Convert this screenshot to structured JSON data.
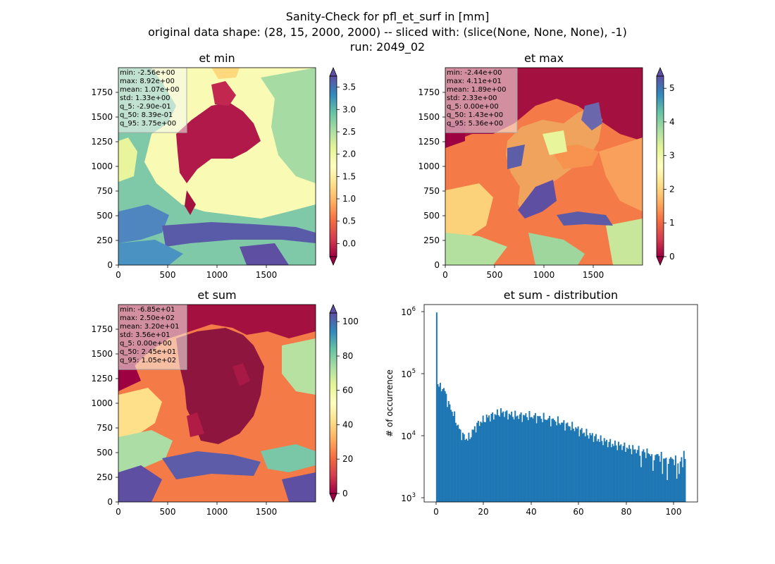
{
  "suptitle": {
    "line1": "Sanity-Check for pfl_et_surf in [mm]",
    "line2": "original data shape: (28, 15, 2000, 2000) -- sliced with: (slice(None, None, None), -1)",
    "line3": "run: 2049_02"
  },
  "colormap": "Spectral",
  "chart_data": [
    {
      "type": "heatmap",
      "title": "et min",
      "xlim": [
        0,
        2000
      ],
      "ylim": [
        0,
        2000
      ],
      "xticks": [
        "0",
        "500",
        "1000",
        "1500"
      ],
      "yticks": [
        "0",
        "250",
        "500",
        "750",
        "1000",
        "1250",
        "1500",
        "1750"
      ],
      "colorbar": {
        "min": -0.29,
        "max": 3.75,
        "extend": "both",
        "ticks": [
          "0.0",
          "0.5",
          "1.0",
          "1.5",
          "2.0",
          "2.5",
          "3.0",
          "3.5"
        ]
      },
      "stats": [
        "min: -2.56e+00",
        "max: 8.92e+00",
        "mean: 1.07e+00",
        "std: 1.33e+00",
        "q_5: -2.90e-01",
        "q_50: 8.39e-01",
        "q_95: 3.75e+00"
      ]
    },
    {
      "type": "heatmap",
      "title": "et max",
      "xlim": [
        0,
        2000
      ],
      "ylim": [
        0,
        2000
      ],
      "xticks": [
        "0",
        "500",
        "1000",
        "1500"
      ],
      "yticks": [
        "0",
        "250",
        "500",
        "750",
        "1000",
        "1250",
        "1500",
        "1750"
      ],
      "colorbar": {
        "min": 0.0,
        "max": 5.36,
        "extend": "both",
        "ticks": [
          "0",
          "1",
          "2",
          "3",
          "4",
          "5"
        ]
      },
      "stats": [
        "min: -2.44e+00",
        "max: 4.11e+01",
        "mean: 1.89e+00",
        "std: 2.33e+00",
        "q_5: 0.00e+00",
        "q_50: 1.43e+00",
        "q_95: 5.36e+00"
      ]
    },
    {
      "type": "heatmap",
      "title": "et sum",
      "xlim": [
        0,
        2000
      ],
      "ylim": [
        0,
        2000
      ],
      "xticks": [
        "0",
        "500",
        "1000",
        "1500"
      ],
      "yticks": [
        "0",
        "250",
        "500",
        "750",
        "1000",
        "1250",
        "1500",
        "1750"
      ],
      "colorbar": {
        "min": 0.0,
        "max": 105,
        "extend": "both",
        "ticks": [
          "0",
          "20",
          "40",
          "60",
          "80",
          "100"
        ]
      },
      "stats": [
        "min: -6.85e+01",
        "max: 2.50e+02",
        "mean: 3.20e+01",
        "std: 3.56e+01",
        "q_5: 0.00e+00",
        "q_50: 2.45e+01",
        "q_95: 1.05e+02"
      ]
    },
    {
      "type": "bar",
      "title": "et sum - distribution",
      "xlabel": "",
      "ylabel": "# of occurrence",
      "yscale": "log",
      "xlim": [
        -5,
        110
      ],
      "ylim": [
        900,
        1200000
      ],
      "xticks": [
        "0",
        "20",
        "40",
        "60",
        "80",
        "100"
      ],
      "yticks": [
        {
          "base": "10",
          "exp": "3"
        },
        {
          "base": "10",
          "exp": "4"
        },
        {
          "base": "10",
          "exp": "5"
        },
        {
          "base": "10",
          "exp": "6"
        }
      ],
      "color": "#1f77b4",
      "anchors": [
        [
          0,
          900000
        ],
        [
          0.5,
          70000
        ],
        [
          1,
          62000
        ],
        [
          2,
          55000
        ],
        [
          3,
          60000
        ],
        [
          4,
          46000
        ],
        [
          5,
          34000
        ],
        [
          6,
          28000
        ],
        [
          7,
          24000
        ],
        [
          8,
          19000
        ],
        [
          9,
          15000
        ],
        [
          10,
          12000
        ],
        [
          11,
          10500
        ],
        [
          12,
          9500
        ],
        [
          13,
          9000
        ],
        [
          14,
          9500
        ],
        [
          15,
          11000
        ],
        [
          16,
          13000
        ],
        [
          18,
          16000
        ],
        [
          20,
          18000
        ],
        [
          22,
          20000
        ],
        [
          24,
          21000
        ],
        [
          26,
          23000
        ],
        [
          28,
          24000
        ],
        [
          30,
          22000
        ],
        [
          32,
          21500
        ],
        [
          34,
          21000
        ],
        [
          36,
          20500
        ],
        [
          38,
          21000
        ],
        [
          40,
          20500
        ],
        [
          42,
          20000
        ],
        [
          44,
          19500
        ],
        [
          46,
          19000
        ],
        [
          48,
          18000
        ],
        [
          50,
          17500
        ],
        [
          52,
          16500
        ],
        [
          54,
          15500
        ],
        [
          56,
          14500
        ],
        [
          58,
          13500
        ],
        [
          60,
          12500
        ],
        [
          62,
          11500
        ],
        [
          64,
          10500
        ],
        [
          66,
          10000
        ],
        [
          68,
          9000
        ],
        [
          70,
          8500
        ],
        [
          72,
          8000
        ],
        [
          74,
          7500
        ],
        [
          76,
          7200
        ],
        [
          78,
          7000
        ],
        [
          80,
          6500
        ],
        [
          82,
          6300
        ],
        [
          84,
          6000
        ],
        [
          86,
          5800
        ],
        [
          88,
          5500
        ],
        [
          90,
          5200
        ],
        [
          92,
          5000
        ],
        [
          94,
          4800
        ],
        [
          96,
          4600
        ],
        [
          98,
          4400
        ],
        [
          100,
          4200
        ],
        [
          102,
          4000
        ],
        [
          104,
          3900
        ],
        [
          105,
          3900
        ]
      ],
      "spikes": [
        [
          104,
          5800
        ],
        [
          97,
          2000
        ],
        [
          101,
          2100
        ],
        [
          91,
          2800
        ],
        [
          95,
          2500
        ],
        [
          102,
          2500
        ],
        [
          86,
          3200
        ]
      ]
    }
  ]
}
